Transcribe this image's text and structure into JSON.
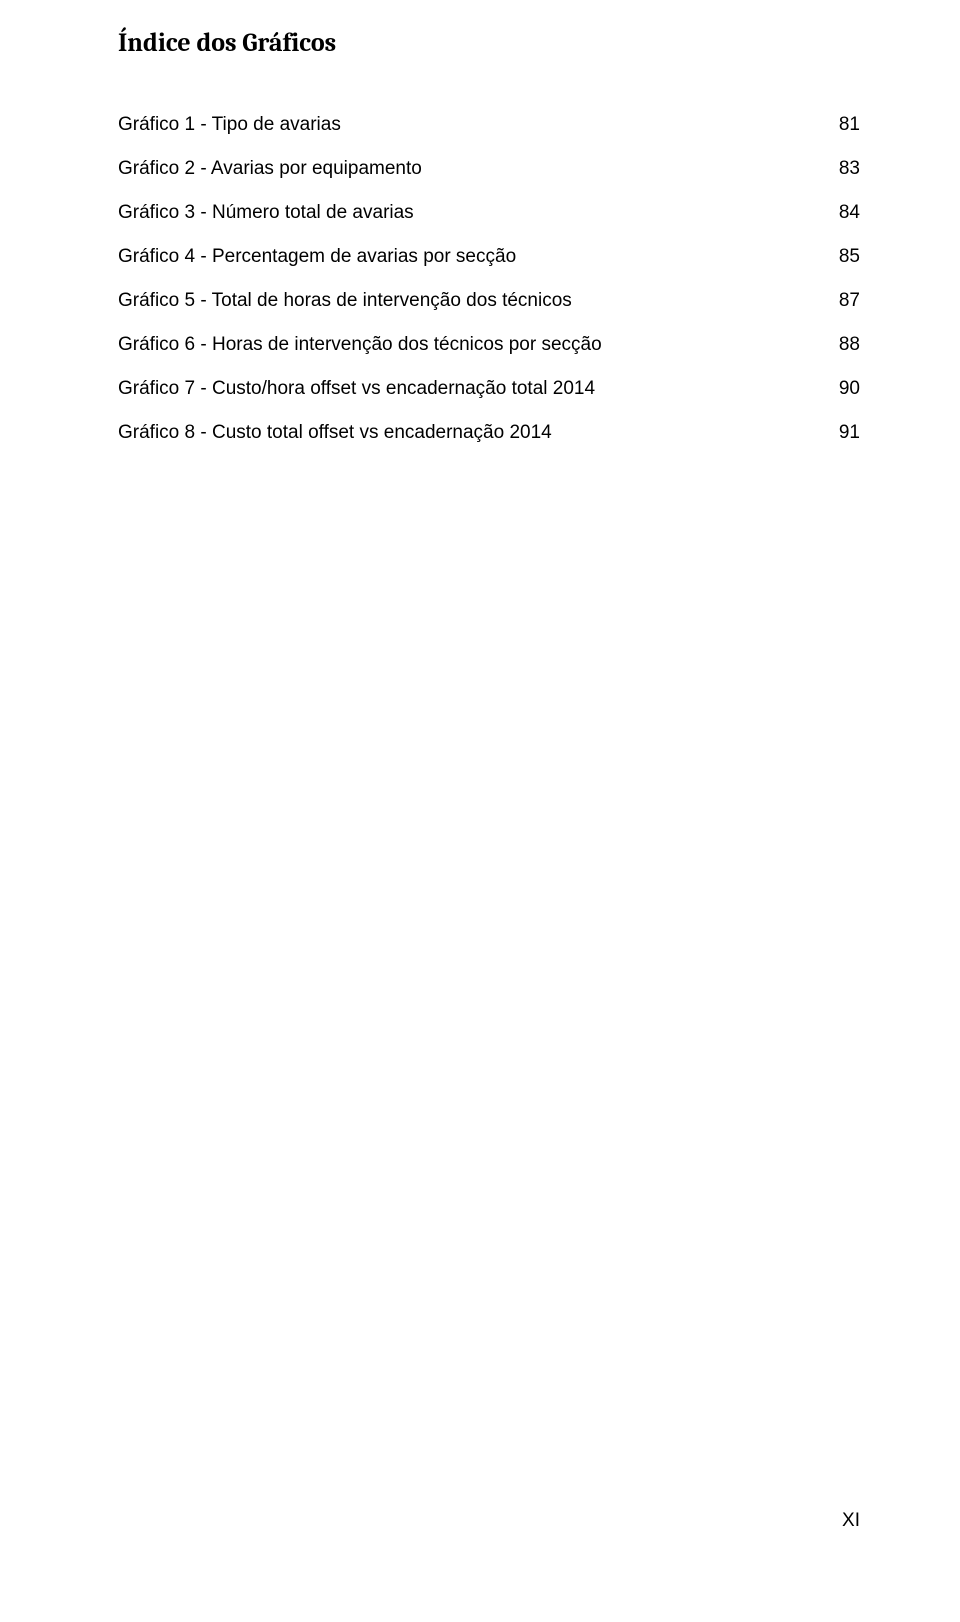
{
  "title": "Índice dos Gráficos",
  "entries": [
    {
      "label": "Gráfico 1 - Tipo de avarias",
      "page": "81"
    },
    {
      "label": "Gráfico 2 - Avarias por equipamento",
      "page": "83"
    },
    {
      "label": "Gráfico 3 - Número total de avarias",
      "page": "84"
    },
    {
      "label": "Gráfico 4 - Percentagem de avarias por secção",
      "page": "85"
    },
    {
      "label": "Gráfico 5 - Total de horas de intervenção dos técnicos",
      "page": "87"
    },
    {
      "label": "Gráfico 6 - Horas de intervenção dos técnicos por secção",
      "page": "88"
    },
    {
      "label": "Gráfico 7 - Custo/hora offset vs encadernação total 2014",
      "page": "90"
    },
    {
      "label": "Gráfico 8 - Custo total offset vs encadernação 2014",
      "page": "91"
    }
  ],
  "page_number": "XI",
  "colors": {
    "text": "#000000",
    "background": "#ffffff"
  },
  "typography": {
    "title_fontsize": 26,
    "title_family": "Cambria/serif",
    "title_weight": "bold",
    "body_fontsize": 19,
    "body_family": "Arial/sans-serif"
  }
}
